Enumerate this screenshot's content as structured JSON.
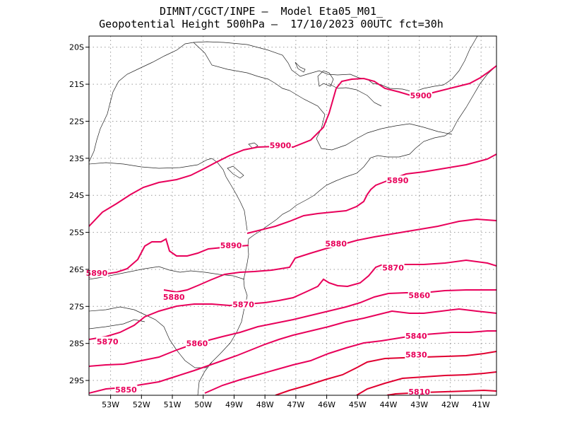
{
  "header": {
    "line1": "DIMNT/CGCT/INPE –  Model Eta05_M01_",
    "line2": "Geopotential Height 500hPa –  17/10/2023 00UTC fct=30h"
  },
  "axes": {
    "x_ticks": [
      "53W",
      "52W",
      "51W",
      "50W",
      "49W",
      "48W",
      "47W",
      "46W",
      "45W",
      "44W",
      "43W",
      "42W",
      "41W"
    ],
    "y_ticks": [
      "20S",
      "21S",
      "22S",
      "23S",
      "24S",
      "25S",
      "26S",
      "27S",
      "28S",
      "29S"
    ],
    "lon_range": [
      -53.7,
      -40.5
    ],
    "lat_range": [
      -29.4,
      -19.7
    ]
  },
  "colors": {
    "contour": "#e8005a",
    "contour_deep": "#e00030",
    "coastline": "#222222",
    "grid": "#9a9a9a"
  },
  "contour_labels": [
    {
      "text": "5900",
      "lon": -42.95,
      "lat": -21.3
    },
    {
      "text": "5900",
      "lon": -47.5,
      "lat": -22.65
    },
    {
      "text": "5890",
      "lon": -43.7,
      "lat": -23.6
    },
    {
      "text": "5890",
      "lon": -49.1,
      "lat": -25.35
    },
    {
      "text": "5890",
      "lon": -53.45,
      "lat": -26.1
    },
    {
      "text": "5880",
      "lon": -45.7,
      "lat": -25.3
    },
    {
      "text": "5880",
      "lon": -50.95,
      "lat": -26.75
    },
    {
      "text": "5870",
      "lon": -43.85,
      "lat": -25.95
    },
    {
      "text": "5870",
      "lon": -48.7,
      "lat": -26.95
    },
    {
      "text": "5870",
      "lon": -53.1,
      "lat": -27.95
    },
    {
      "text": "5860",
      "lon": -43.0,
      "lat": -26.7
    },
    {
      "text": "5860",
      "lon": -50.2,
      "lat": -28.0
    },
    {
      "text": "5850",
      "lon": -52.5,
      "lat": -29.25
    },
    {
      "text": "5840",
      "lon": -43.1,
      "lat": -27.8
    },
    {
      "text": "5830",
      "lon": -43.1,
      "lat": -28.3
    },
    {
      "text": "5810",
      "lon": -43.0,
      "lat": -29.3
    }
  ]
}
